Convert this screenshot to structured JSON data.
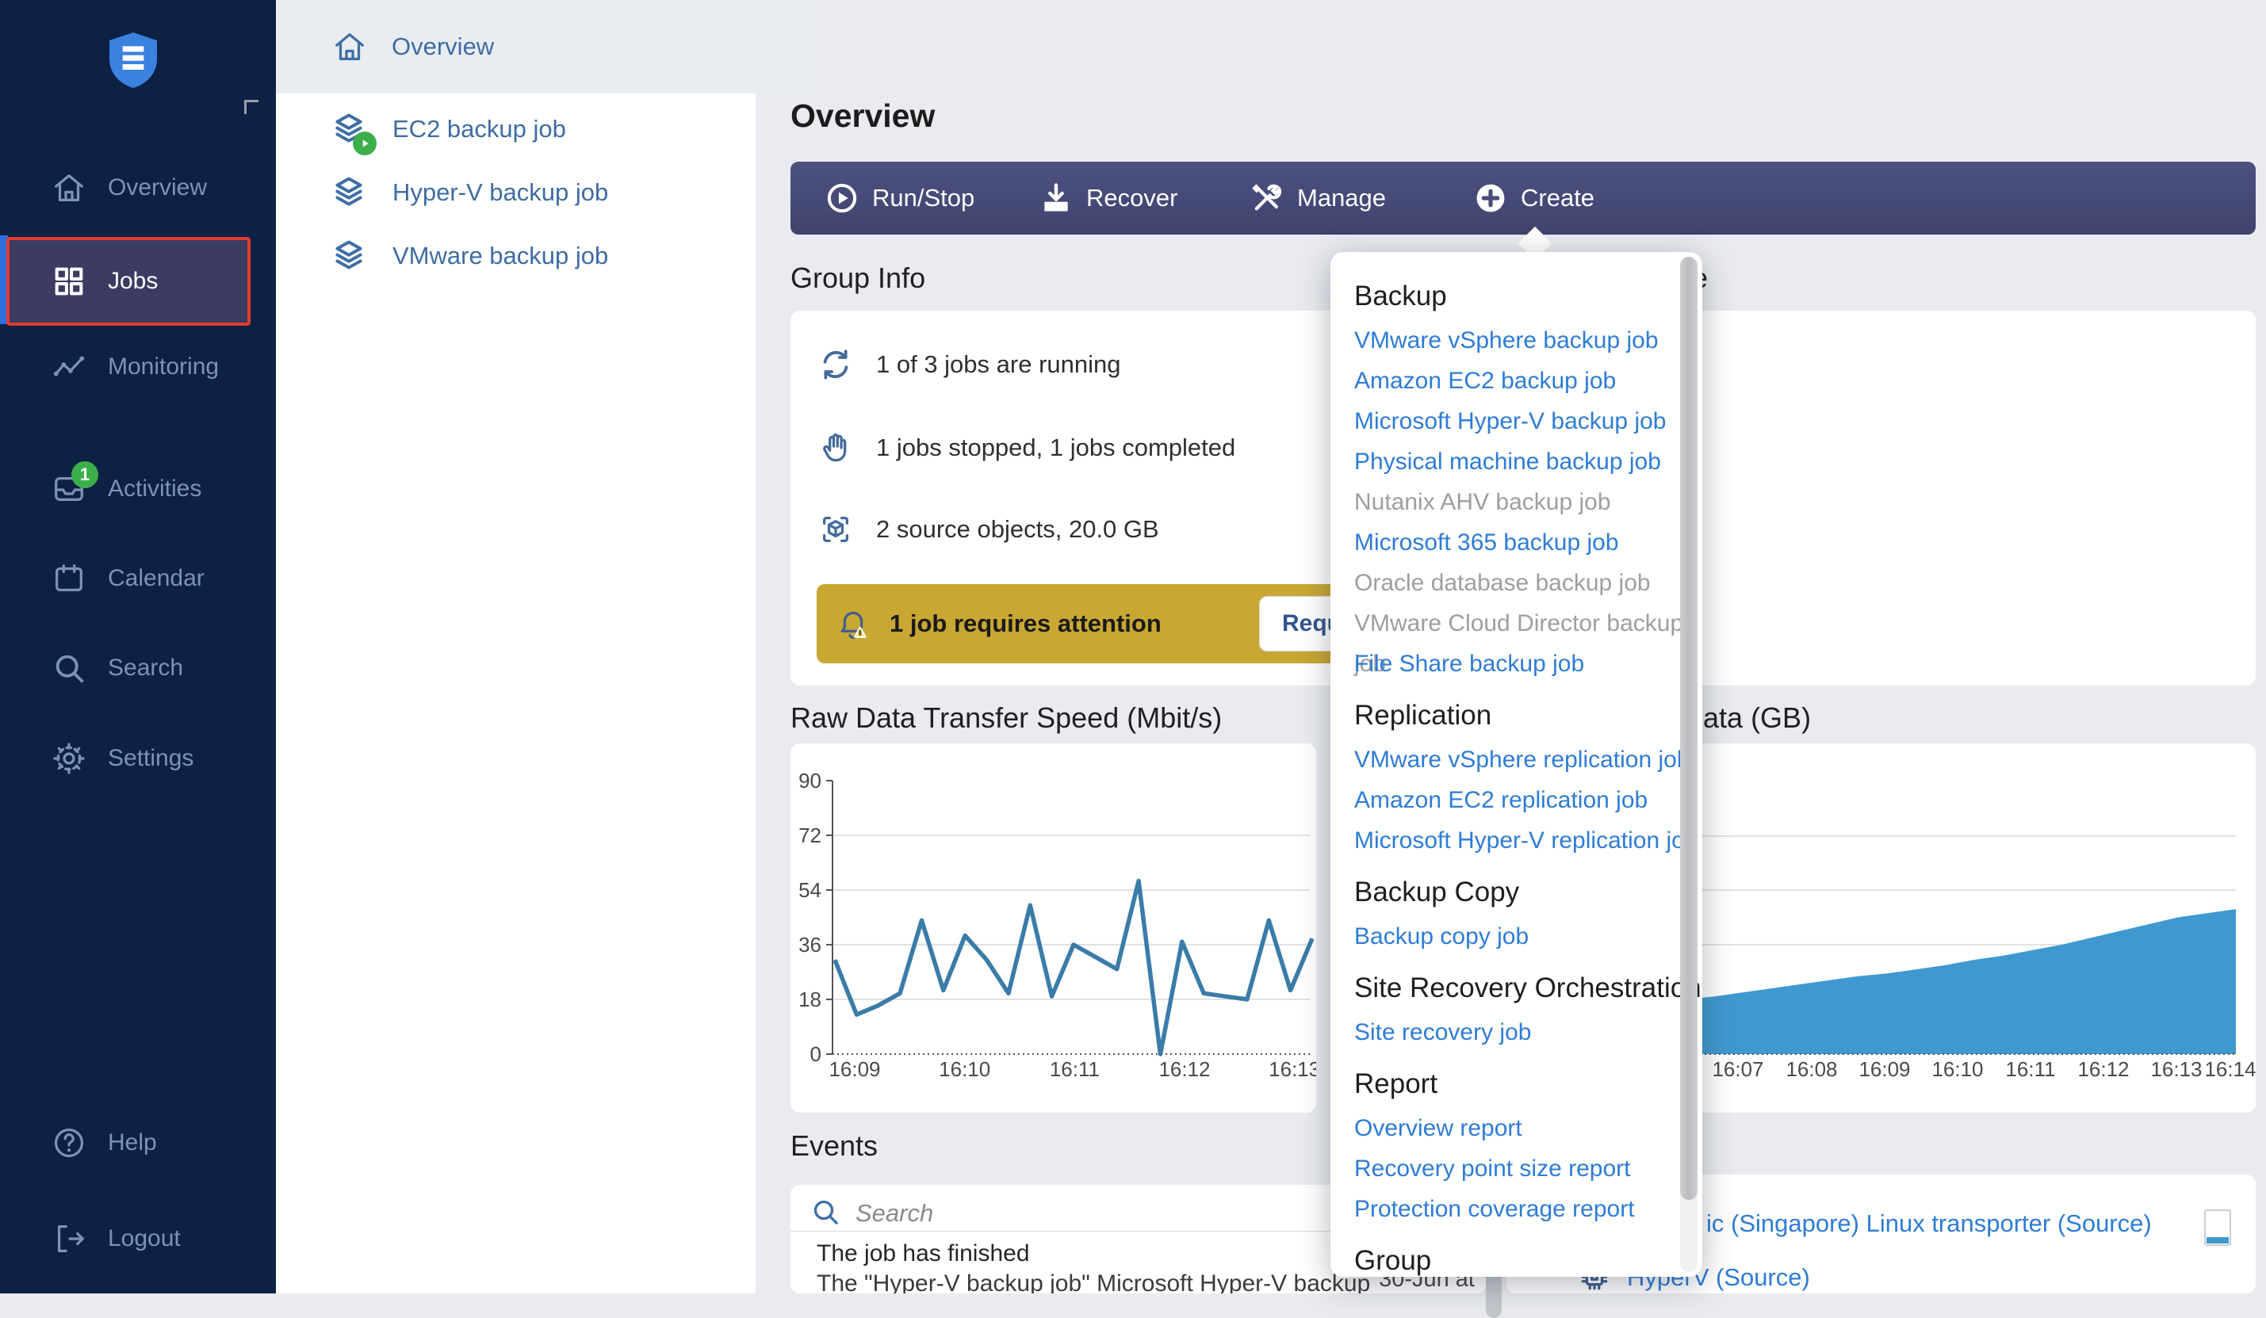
{
  "colors": {
    "sidebar_bg": "#0c2143",
    "sidebar_text": "#7e93b4",
    "selected_item_bg": "#3c3b62",
    "selected_item_outline": "#e23b2e",
    "selected_accent_bar": "#2e6ede",
    "toolbar_bg": "#474b77",
    "link_blue": "#2e7cd6",
    "disabled_gray": "#9e9e9e",
    "warning_banner": "#c8a733",
    "badge_green": "#3caf4a",
    "steel_icon": "#456b9b",
    "chart_line": "#3a7ca8",
    "chart_area_fill": "#3f99d0",
    "main_bg": "#e9ebf0"
  },
  "sidebar": {
    "logo": "shield-logo",
    "items": [
      {
        "label": "Overview",
        "icon": "home"
      },
      {
        "label": "Jobs",
        "icon": "grid",
        "selected": true
      },
      {
        "label": "Monitoring",
        "icon": "monitoring"
      },
      {
        "label": "Activities",
        "icon": "inbox",
        "badge": "1"
      },
      {
        "label": "Calendar",
        "icon": "calendar"
      },
      {
        "label": "Search",
        "icon": "search"
      },
      {
        "label": "Settings",
        "icon": "gear"
      }
    ],
    "bottom_items": [
      {
        "label": "Help",
        "icon": "help"
      },
      {
        "label": "Logout",
        "icon": "logout"
      }
    ]
  },
  "job_sidebar": {
    "items": [
      {
        "label": "Overview",
        "icon": "home",
        "selected": true
      },
      {
        "label": "EC2 backup job",
        "icon": "layers",
        "running_badge": true
      },
      {
        "label": "Hyper-V backup job",
        "icon": "layers"
      },
      {
        "label": "VMware backup job",
        "icon": "layers"
      }
    ]
  },
  "header": {
    "title": "Overview"
  },
  "toolbar": {
    "buttons": [
      {
        "label": "Run/Stop",
        "icon": "play-circle"
      },
      {
        "label": "Recover",
        "icon": "download"
      },
      {
        "label": "Manage",
        "icon": "tools"
      },
      {
        "label": "Create",
        "icon": "plus-circle"
      }
    ]
  },
  "group_info": {
    "heading": "Group Info",
    "rows": [
      {
        "icon": "refresh",
        "text": "1 of 3 jobs are running"
      },
      {
        "icon": "hand",
        "text": "1 jobs stopped, 1 jobs completed"
      },
      {
        "icon": "cube-scan",
        "text": "2 source objects, 20.0 GB"
      }
    ],
    "attention": {
      "icon": "bell-warning",
      "text": "1 job requires attention",
      "button_label_visible_fragment": "Requ"
    }
  },
  "right_section": {
    "heading_visible_fragment": "e"
  },
  "create_menu": {
    "sections": [
      {
        "title": "Backup",
        "items": [
          {
            "label": "VMware vSphere backup job",
            "enabled": true
          },
          {
            "label": "Amazon EC2 backup job",
            "enabled": true
          },
          {
            "label": "Microsoft Hyper-V backup job",
            "enabled": true
          },
          {
            "label": "Physical machine backup job",
            "enabled": true
          },
          {
            "label": "Nutanix AHV backup job",
            "enabled": false
          },
          {
            "label": "Microsoft 365 backup job",
            "enabled": true
          },
          {
            "label": "Oracle database backup job",
            "enabled": false
          },
          {
            "label": "VMware Cloud Director backup job",
            "enabled": false
          },
          {
            "label": "File Share backup job",
            "enabled": true
          }
        ]
      },
      {
        "title": "Replication",
        "items": [
          {
            "label": "VMware vSphere replication job",
            "enabled": true
          },
          {
            "label": "Amazon EC2 replication job",
            "enabled": true
          },
          {
            "label": "Microsoft Hyper-V replication job",
            "enabled": true
          }
        ]
      },
      {
        "title": "Backup Copy",
        "items": [
          {
            "label": "Backup copy job",
            "enabled": true
          }
        ]
      },
      {
        "title": "Site Recovery Orchestration",
        "items": [
          {
            "label": "Site recovery job",
            "enabled": true
          }
        ]
      },
      {
        "title": "Report",
        "items": [
          {
            "label": "Overview report",
            "enabled": true
          },
          {
            "label": "Recovery point size report",
            "enabled": true
          },
          {
            "label": "Protection coverage report",
            "enabled": true
          }
        ]
      },
      {
        "title": "Group",
        "items": []
      }
    ]
  },
  "chart_data": [
    {
      "type": "line",
      "title": "Raw Data Transfer Speed (Mbit/s)",
      "x_labels": [
        "16:09",
        "16:10",
        "16:11",
        "16:12",
        "16:13"
      ],
      "x_domain_note": "points every ~12s, from ~16:08.8 to ~16:13.3; 16:14 occluded by menu",
      "y_ticks": [
        0,
        18,
        36,
        54,
        72,
        90
      ],
      "ylim": [
        0,
        90
      ],
      "values": [
        31,
        13,
        16,
        20,
        44,
        21,
        39,
        31,
        20,
        49,
        19,
        36,
        32,
        28,
        57,
        0,
        37,
        20,
        19,
        18,
        44,
        21,
        38
      ],
      "grid": "horizontal",
      "line_color": "#3a7ca8"
    },
    {
      "type": "area",
      "title": "Raw Data (GB)",
      "title_visible_fragment": "aw Data (GB)",
      "x_labels": [
        "16:07",
        "16:08",
        "16:09",
        "16:10",
        "16:11",
        "16:12",
        "16:13",
        "16:14"
      ],
      "y_axis_note": "y-axis labels occluded by the Create menu; values are fractions of plot height",
      "values_fraction": [
        0.145,
        0.155,
        0.165,
        0.175,
        0.19,
        0.2,
        0.21,
        0.225,
        0.24,
        0.255,
        0.27,
        0.285,
        0.295,
        0.31,
        0.325,
        0.345,
        0.36,
        0.38,
        0.4,
        0.425,
        0.45,
        0.475,
        0.5,
        0.515,
        0.53
      ],
      "grid": "horizontal",
      "fill_color": "#3f99d0"
    }
  ],
  "events": {
    "heading": "Events",
    "search_placeholder": "Search",
    "items": [
      {
        "title": "The job has finished",
        "description_visible": "The \"Hyper-V backup job\" Microsoft Hyper-V backup",
        "date_visible_fragment": "30-Jun at"
      }
    ]
  },
  "target_panel": {
    "rows": [
      {
        "label_visible_fragment": "ic (Singapore) Linux transporter (Source)"
      },
      {
        "label": "HyperV (Source)",
        "icon": "chip"
      }
    ]
  }
}
